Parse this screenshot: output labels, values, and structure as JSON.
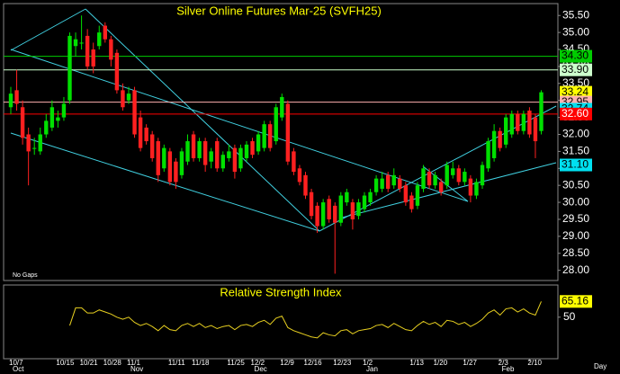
{
  "chart_data": {
    "type": "candlestick",
    "title": "Silver Online Futures Mar-25 (SVFH25)",
    "gap_mode_label": "No Gaps",
    "x_axis_unit": "Day",
    "categories": [
      "10/7",
      null,
      null,
      null,
      null,
      null,
      null,
      null,
      "10/15",
      null,
      null,
      null,
      "10/21",
      null,
      null,
      null,
      "10/28",
      null,
      null,
      null,
      "11/1",
      null,
      null,
      null,
      null,
      null,
      null,
      "11/11",
      null,
      null,
      null,
      "11/18",
      null,
      null,
      null,
      null,
      null,
      "11/25",
      null,
      null,
      null,
      "12/2",
      null,
      null,
      null,
      null,
      "12/9",
      null,
      null,
      null,
      "12/16",
      null,
      null,
      null,
      null,
      "12/23",
      null,
      null,
      null,
      null,
      "1/2",
      null,
      null,
      null,
      null,
      null,
      null,
      null,
      "1/13",
      null,
      null,
      null,
      "1/20",
      null,
      null,
      null,
      null,
      "1/27",
      null,
      null,
      null,
      null,
      null,
      "2/3",
      null,
      null,
      null,
      null,
      "2/10",
      null,
      null
    ],
    "months": [
      "Oct",
      null,
      null,
      null,
      null,
      null,
      null,
      null,
      null,
      null,
      null,
      null,
      null,
      null,
      null,
      null,
      null,
      null,
      null,
      null,
      "Nov",
      null,
      null,
      null,
      null,
      null,
      null,
      null,
      null,
      null,
      null,
      null,
      null,
      null,
      null,
      null,
      null,
      null,
      null,
      null,
      null,
      "Dec",
      null,
      null,
      null,
      null,
      null,
      null,
      null,
      null,
      null,
      null,
      null,
      null,
      null,
      null,
      null,
      null,
      null,
      null,
      "Jan",
      null,
      null,
      null,
      null,
      null,
      null,
      null,
      null,
      null,
      null,
      null,
      null,
      null,
      null,
      null,
      null,
      null,
      null,
      null,
      null,
      null,
      null,
      "Feb",
      null,
      null,
      null,
      null,
      null,
      null,
      null
    ],
    "open": [
      32.8,
      33.3,
      32.8,
      32.0,
      31.6,
      31.5,
      32.0,
      32.2,
      32.4,
      32.5,
      33.0,
      34.6,
      34.7,
      34.9,
      34.5,
      34.6,
      35.2,
      34.8,
      34.4,
      33.3,
      33.0,
      33.3,
      32.5,
      32.2,
      32.0,
      31.8,
      31.0,
      31.5,
      31.2,
      30.8,
      31.2,
      32.0,
      31.3,
      31.8,
      31.2,
      31.8,
      31.0,
      31.3,
      31.6,
      31.0,
      31.3,
      31.8,
      31.5,
      31.6,
      32.3,
      31.8,
      32.5,
      32.9,
      31.5,
      31.0,
      30.8,
      30.3,
      29.9,
      29.3,
      30.1,
      29.9,
      29.4,
      30.0,
      30.0,
      29.6,
      29.8,
      30.0,
      30.3,
      30.4,
      30.8,
      30.5,
      30.7,
      30.5,
      30.2,
      29.9,
      30.4,
      30.9,
      30.5,
      30.6,
      30.5,
      30.8,
      31.0,
      30.6,
      30.7,
      30.2,
      30.5,
      31.0,
      31.3,
      32.1,
      31.7,
      32.0,
      32.6,
      32.1,
      32.7,
      32.5,
      32.1
    ],
    "high": [
      33.4,
      33.9,
      33.0,
      32.2,
      31.9,
      32.2,
      32.6,
      33.0,
      32.7,
      33.1,
      35.0,
      35.0,
      35.5,
      35.1,
      34.7,
      35.2,
      35.3,
      34.9,
      34.5,
      33.5,
      33.4,
      33.4,
      32.7,
      32.3,
      32.1,
      31.9,
      31.7,
      31.6,
      31.3,
      31.6,
      32.0,
      32.1,
      31.9,
      31.9,
      31.6,
      31.9,
      31.5,
      31.7,
      31.7,
      31.7,
      31.8,
      31.9,
      32.1,
      32.4,
      32.4,
      32.9,
      33.2,
      33.0,
      31.6,
      31.1,
      30.9,
      30.4,
      30.0,
      30.1,
      30.2,
      30.0,
      30.3,
      30.4,
      30.1,
      30.1,
      30.3,
      30.4,
      30.8,
      30.9,
      30.9,
      31.0,
      30.8,
      30.6,
      30.3,
      30.6,
      31.1,
      31.0,
      30.9,
      30.7,
      31.2,
      31.2,
      31.1,
      31.0,
      30.8,
      30.7,
      31.2,
      31.9,
      32.3,
      32.2,
      32.6,
      32.7,
      32.7,
      32.7,
      32.8,
      32.6,
      33.3
    ],
    "low": [
      32.6,
      32.7,
      31.7,
      30.5,
      31.4,
      31.4,
      31.9,
      32.1,
      32.2,
      32.4,
      32.9,
      34.3,
      34.5,
      33.9,
      33.8,
      34.5,
      34.7,
      34.0,
      33.2,
      32.7,
      32.9,
      31.9,
      31.5,
      31.7,
      31.2,
      30.6,
      30.9,
      30.5,
      30.4,
      30.7,
      31.1,
      31.2,
      31.2,
      30.9,
      31.0,
      30.9,
      30.9,
      31.2,
      30.7,
      30.9,
      31.2,
      31.3,
      31.4,
      31.5,
      31.5,
      31.7,
      32.4,
      31.1,
      30.8,
      30.5,
      30.1,
      29.5,
      29.1,
      29.2,
      29.4,
      27.9,
      29.3,
      29.9,
      29.2,
      29.5,
      29.7,
      29.9,
      30.2,
      30.3,
      30.3,
      30.4,
      30.3,
      29.9,
      29.7,
      29.8,
      30.3,
      30.4,
      30.4,
      30.2,
      30.4,
      30.7,
      30.5,
      30.5,
      30.0,
      30.1,
      30.4,
      30.9,
      31.2,
      31.5,
      31.6,
      31.9,
      32.0,
      32.0,
      31.9,
      31.3,
      32.0
    ],
    "close": [
      33.2,
      32.9,
      31.9,
      31.5,
      31.6,
      32.0,
      32.4,
      32.8,
      32.5,
      32.9,
      34.9,
      34.8,
      34.7,
      34.0,
      34.0,
      35.0,
      34.8,
      34.2,
      33.3,
      32.8,
      33.2,
      32.0,
      31.6,
      31.8,
      31.3,
      30.8,
      31.6,
      30.6,
      30.6,
      31.5,
      31.8,
      31.3,
      31.8,
      31.1,
      31.5,
      31.0,
      31.4,
      31.5,
      30.9,
      31.6,
      31.7,
      31.4,
      32.0,
      32.3,
      31.6,
      32.8,
      33.1,
      31.2,
      30.9,
      30.6,
      30.2,
      29.6,
      29.3,
      30.0,
      29.5,
      29.4,
      30.2,
      30.3,
      29.5,
      30.0,
      30.2,
      30.3,
      30.7,
      30.7,
      30.4,
      30.8,
      30.4,
      30.0,
      29.8,
      30.5,
      31.0,
      30.5,
      30.8,
      30.3,
      31.1,
      31.0,
      30.6,
      30.9,
      30.2,
      30.6,
      31.1,
      31.8,
      32.1,
      31.6,
      32.5,
      32.6,
      32.1,
      32.6,
      32.0,
      31.8,
      33.24
    ],
    "up_color": "#00e000",
    "down_color": "#ff2020",
    "ylim": [
      27.7,
      35.85
    ],
    "yticks": [
      {
        "value": 35.5,
        "label": "35.50"
      },
      {
        "value": 35,
        "label": "35.00"
      },
      {
        "value": 34.5,
        "label": "34.50"
      },
      {
        "value": 34,
        "label": "34.00"
      },
      {
        "value": 33.5,
        "label": "33.50"
      },
      {
        "value": 33,
        "label": "33.00"
      },
      {
        "value": 32.5,
        "label": "32.50"
      },
      {
        "value": 32,
        "label": "32.00"
      },
      {
        "value": 31.5,
        "label": "31.50"
      },
      {
        "value": 31,
        "label": "31.00"
      },
      {
        "value": 30.5,
        "label": "30.50"
      },
      {
        "value": 30,
        "label": "30.00"
      },
      {
        "value": 29.5,
        "label": "29.50"
      },
      {
        "value": 29,
        "label": "29.00"
      },
      {
        "value": 28.5,
        "label": "28.50"
      },
      {
        "value": 28,
        "label": "28.00"
      }
    ],
    "levels": [
      {
        "value": 34.3,
        "label": "34.30",
        "color": "#00cc00",
        "text_color": "#000000",
        "line": true
      },
      {
        "value": 33.9,
        "label": "33.90",
        "color": "#ccffcc",
        "text_color": "#000000",
        "line": true
      },
      {
        "value": 33.24,
        "label": "33.24",
        "color": "#ffff00",
        "text_color": "#000000",
        "line": false
      },
      {
        "value": 32.95,
        "label": "32.95",
        "color": "#ffb0b0",
        "text_color": "#000000",
        "line": true
      },
      {
        "value": 32.74,
        "label": "32.74",
        "color": "#00e0f0",
        "text_color": "#000000",
        "line": false
      },
      {
        "value": 32.6,
        "label": "32.60",
        "color": "#ff0000",
        "text_color": "#ffffff",
        "line": true
      },
      {
        "value": 31.1,
        "label": "31.10",
        "color": "#00e0f0",
        "text_color": "#000000",
        "line": false
      }
    ],
    "rsi": {
      "title": "Relative Strength Index",
      "color": "#e8d020",
      "ylim": [
        10,
        81
      ],
      "yticks": [
        50
      ],
      "last_label": {
        "value": 65.16,
        "label": "65.16",
        "color": "#ffff00"
      },
      "values": [
        null,
        null,
        null,
        null,
        null,
        null,
        null,
        null,
        null,
        null,
        42,
        59,
        59,
        54,
        54,
        57,
        55,
        53,
        50,
        48,
        50,
        45,
        42,
        44,
        41,
        37,
        42,
        38,
        37,
        42,
        44,
        41,
        44,
        40,
        42,
        39,
        41,
        42,
        38,
        42,
        43,
        41,
        45,
        47,
        43,
        49,
        51,
        40,
        37,
        35,
        33,
        31,
        30,
        35,
        33,
        32,
        37,
        38,
        34,
        37,
        38,
        39,
        42,
        43,
        40,
        44,
        41,
        38,
        37,
        42,
        46,
        43,
        45,
        41,
        47,
        46,
        43,
        45,
        41,
        44,
        48,
        54,
        57,
        52,
        58,
        59,
        55,
        58,
        54,
        52,
        65.16
      ]
    }
  }
}
